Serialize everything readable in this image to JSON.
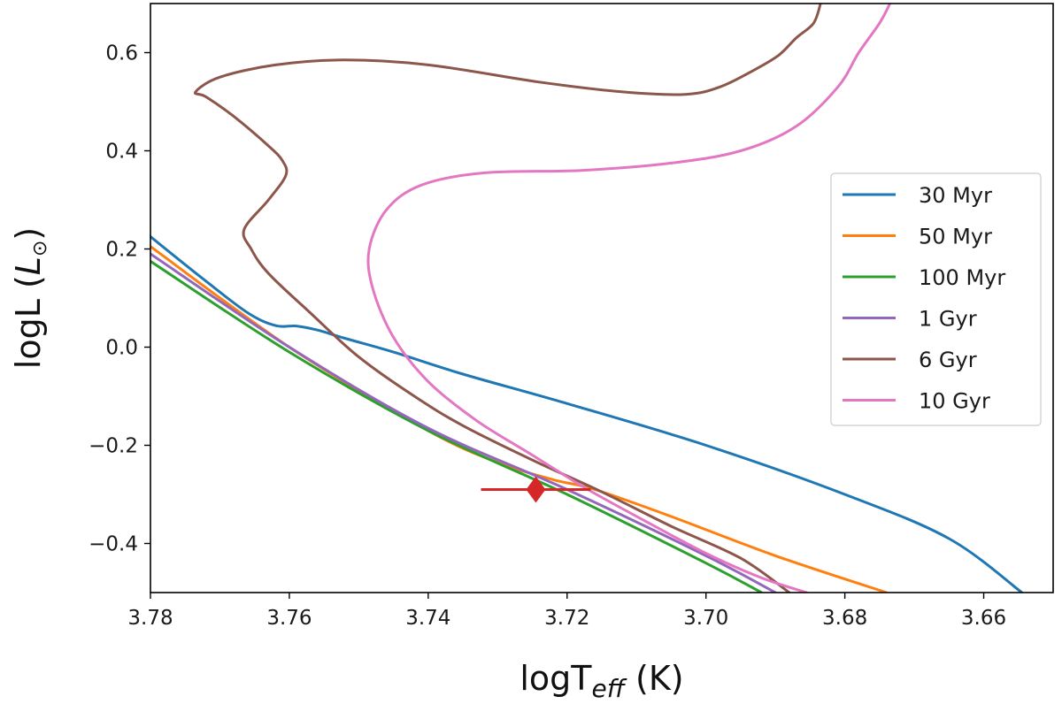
{
  "chart_data": {
    "type": "line",
    "title": "",
    "xlabel": {
      "main": "logT",
      "sub": "eff",
      "unit": " (K)"
    },
    "ylabel": {
      "main": "logL (",
      "sym": "L",
      "sub": "⊙",
      "close": ")"
    },
    "xlim": [
      3.78,
      3.65
    ],
    "ylim": [
      -0.5,
      0.7
    ],
    "xticks": [
      3.78,
      3.76,
      3.74,
      3.72,
      3.7,
      3.68,
      3.66
    ],
    "xtick_labels": [
      "3.78",
      "3.76",
      "3.74",
      "3.72",
      "3.70",
      "3.68",
      "3.66"
    ],
    "yticks": [
      0.6,
      0.4,
      0.2,
      0.0,
      -0.2,
      -0.4
    ],
    "ytick_labels": [
      "0.6",
      "0.4",
      "0.2",
      "0.0",
      "−0.2",
      "−0.4"
    ],
    "grid": false,
    "legend_position": "center-right",
    "series": [
      {
        "name": "30 Myr",
        "color": "#1f77b4",
        "x": [
          3.78,
          3.7725,
          3.766,
          3.762,
          3.759,
          3.756,
          3.752,
          3.745,
          3.735,
          3.72,
          3.7,
          3.68,
          3.665,
          3.6545
        ],
        "y": [
          0.225,
          0.14,
          0.07,
          0.044,
          0.043,
          0.035,
          0.018,
          -0.01,
          -0.055,
          -0.115,
          -0.2,
          -0.3,
          -0.39,
          -0.5
        ]
      },
      {
        "name": "50 Myr",
        "color": "#ff7f0e",
        "x": [
          3.78,
          3.76,
          3.74,
          3.73,
          3.722,
          3.716,
          3.705,
          3.69,
          3.674
        ],
        "y": [
          0.205,
          0.0,
          -0.17,
          -0.235,
          -0.27,
          -0.29,
          -0.345,
          -0.425,
          -0.5
        ]
      },
      {
        "name": "100 Myr",
        "color": "#2ca02c",
        "x": [
          3.78,
          3.76,
          3.74,
          3.72,
          3.7,
          3.692
        ],
        "y": [
          0.175,
          -0.01,
          -0.17,
          -0.3,
          -0.44,
          -0.5
        ]
      },
      {
        "name": "1 Gyr",
        "color": "#9467bd",
        "x": [
          3.78,
          3.76,
          3.74,
          3.72,
          3.7,
          3.69
        ],
        "y": [
          0.19,
          0.0,
          -0.165,
          -0.29,
          -0.425,
          -0.5
        ]
      },
      {
        "name": "6 Gyr",
        "color": "#8c564b",
        "x": [
          3.6835,
          3.6845,
          3.687,
          3.6895,
          3.693,
          3.698,
          3.703,
          3.712,
          3.724,
          3.74,
          3.752,
          3.762,
          3.77,
          3.7735,
          3.772,
          3.768,
          3.763,
          3.761,
          3.7605,
          3.763,
          3.7665,
          3.7655,
          3.763,
          3.757,
          3.75,
          3.742,
          3.735,
          3.725,
          3.715,
          3.705,
          3.695,
          3.688
        ],
        "y": [
          0.7,
          0.66,
          0.63,
          0.595,
          0.565,
          0.53,
          0.515,
          0.52,
          0.54,
          0.575,
          0.585,
          0.575,
          0.55,
          0.52,
          0.51,
          0.47,
          0.41,
          0.38,
          0.35,
          0.3,
          0.24,
          0.2,
          0.15,
          0.07,
          -0.02,
          -0.1,
          -0.16,
          -0.23,
          -0.295,
          -0.365,
          -0.43,
          -0.5
        ]
      },
      {
        "name": "10 Gyr",
        "color": "#e377c2",
        "x": [
          3.6735,
          3.675,
          3.678,
          3.681,
          3.687,
          3.695,
          3.705,
          3.718,
          3.732,
          3.741,
          3.746,
          3.7485,
          3.748,
          3.745,
          3.74,
          3.733,
          3.725,
          3.717,
          3.708,
          3.7,
          3.692,
          3.6855
        ],
        "y": [
          0.7,
          0.66,
          0.6,
          0.53,
          0.45,
          0.4,
          0.375,
          0.36,
          0.355,
          0.33,
          0.28,
          0.2,
          0.12,
          0.02,
          -0.07,
          -0.15,
          -0.22,
          -0.29,
          -0.36,
          -0.42,
          -0.47,
          -0.5
        ]
      }
    ],
    "annotations": [
      {
        "type": "errorbar-point",
        "marker": "diamond",
        "color": "#d62728",
        "x": 3.7245,
        "y": -0.29,
        "x_err": [
          3.7324,
          3.7166
        ]
      }
    ]
  }
}
